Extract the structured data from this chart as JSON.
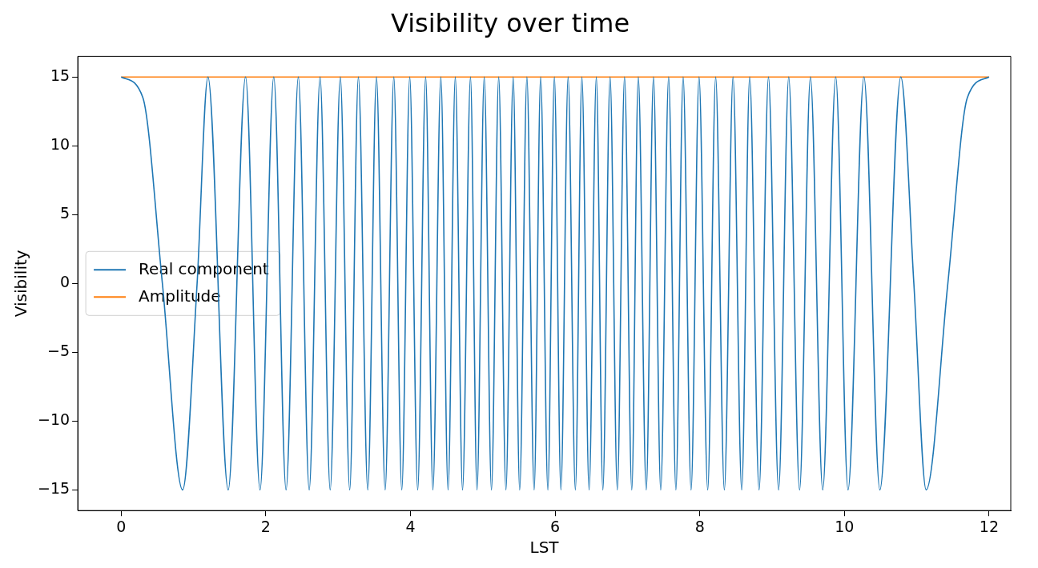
{
  "chart_data": {
    "type": "line",
    "title": "Visibility over time",
    "xlabel": "LST",
    "ylabel": "Visibility",
    "xlim": [
      -0.6,
      12.3
    ],
    "xticks": [
      0,
      2,
      4,
      6,
      8,
      10,
      12
    ],
    "ylim": [
      -16.5,
      16.5
    ],
    "yticks": [
      {
        "value": -15,
        "label": "−15"
      },
      {
        "value": -10,
        "label": "−10"
      },
      {
        "value": -5,
        "label": "−5"
      },
      0,
      5,
      10,
      15
    ],
    "grid": false,
    "legend": "center left",
    "marker": "none",
    "line_style": "solid",
    "series": [
      {
        "name": "Real component",
        "color": "#1f77b4",
        "x": [
          0,
          0.3,
          0.57,
          0.85,
          1.05,
          1.2,
          1.48,
          1.72,
          1.92,
          2.11,
          2.28,
          2.45,
          2.6,
          2.75,
          2.89,
          3.03,
          3.16,
          3.28,
          3.41,
          3.53,
          3.65,
          3.77,
          3.88,
          3.99,
          4.1,
          4.21,
          4.31,
          4.42,
          4.52,
          4.62,
          4.72,
          4.83,
          4.92,
          5.02,
          5.12,
          5.22,
          5.32,
          5.42,
          5.51,
          5.61,
          5.71,
          5.8,
          5.9,
          5.99,
          6.08,
          6.18,
          6.28,
          6.37,
          6.47,
          6.57,
          6.66,
          6.76,
          6.86,
          6.96,
          7.06,
          7.15,
          7.26,
          7.36,
          7.46,
          7.57,
          7.67,
          7.77,
          7.88,
          7.99,
          8.11,
          8.22,
          8.34,
          8.46,
          8.58,
          8.69,
          8.82,
          8.95,
          9.09,
          9.23,
          9.38,
          9.53,
          9.7,
          9.88,
          10.05,
          10.27,
          10.49,
          10.78,
          10.96,
          11.13,
          11.43,
          11.7,
          12
        ],
        "values": [
          15,
          13.5,
          0,
          -15,
          0,
          15,
          -15,
          15,
          -15,
          15,
          -15,
          15,
          -15,
          15,
          -15,
          15,
          -15,
          15,
          -15,
          15,
          -15,
          15,
          -15,
          15,
          -15,
          15,
          -15,
          15,
          -15,
          15,
          -15,
          15,
          -15,
          15,
          -15,
          15,
          -15,
          15,
          -15,
          15,
          -15,
          15,
          -15,
          15,
          -15,
          15,
          -15,
          15,
          -15,
          15,
          -15,
          15,
          -15,
          15,
          -15,
          15,
          -15,
          15,
          -15,
          15,
          -15,
          15,
          -15,
          15,
          -15,
          15,
          -15,
          15,
          -15,
          15,
          -15,
          15,
          -15,
          15,
          -15,
          15,
          -15,
          15,
          -15,
          15,
          -15,
          15,
          0,
          -15,
          0,
          13.5,
          15
        ]
      },
      {
        "name": "Amplitude",
        "color": "#ff7f0e",
        "x": [
          0,
          12
        ],
        "values": [
          15,
          15
        ]
      }
    ]
  }
}
